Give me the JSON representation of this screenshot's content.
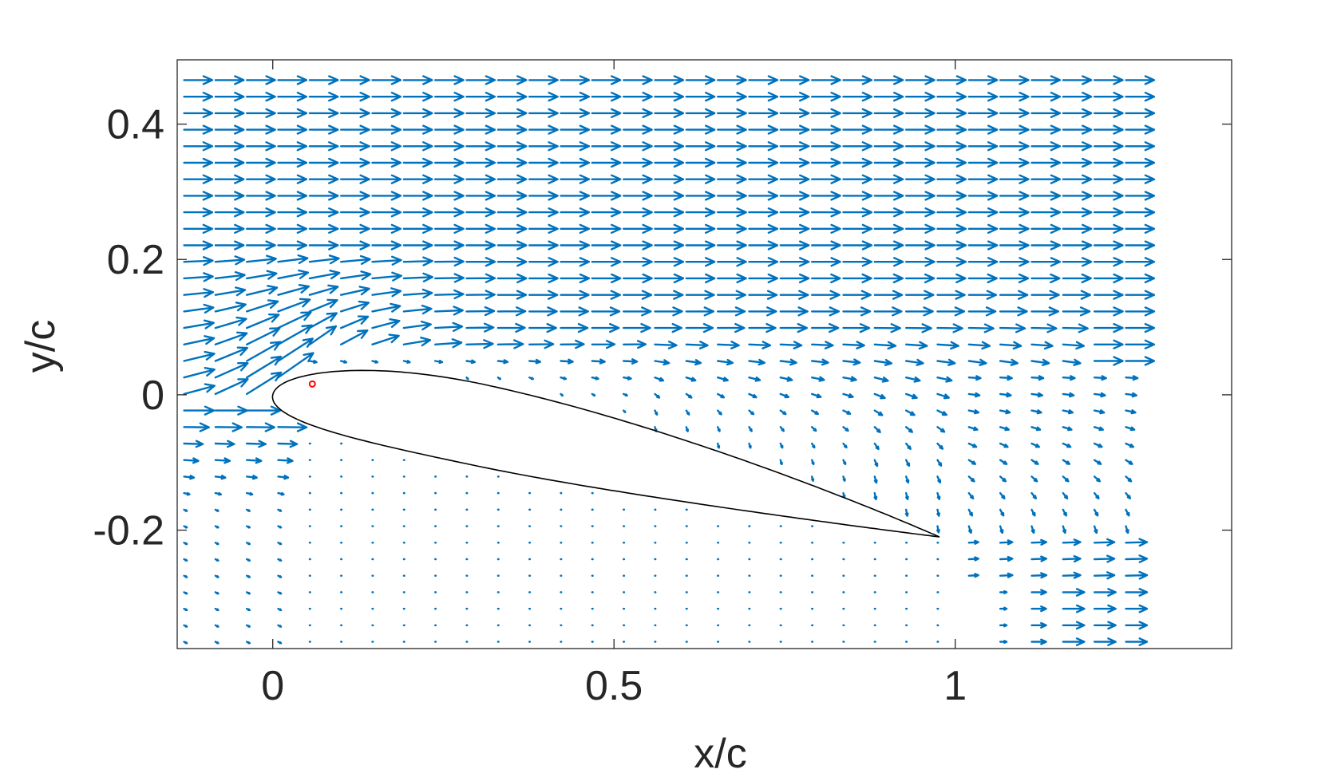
{
  "chart_data": {
    "type": "quiver",
    "title": "",
    "xlabel": "x/c",
    "ylabel": "y/c",
    "xlim": [
      -0.14,
      1.405
    ],
    "ylim": [
      -0.375,
      0.495
    ],
    "xticks": [
      0,
      0.5,
      1
    ],
    "xtick_labels": [
      "0",
      "0.5",
      "1"
    ],
    "yticks": [
      -0.2,
      0,
      0.2,
      0.4
    ],
    "ytick_labels": [
      "-0.2",
      "0",
      "0.2",
      "0.4"
    ],
    "grid": false,
    "legend": "none",
    "colors": {
      "vectors": "#0072bd",
      "airfoil": "#000000",
      "marker": "#ff0000",
      "axes": "#262626"
    },
    "vector_field": {
      "x_range": [
        -0.13,
        1.25
      ],
      "x_count": 31,
      "y_range": [
        -0.365,
        0.465
      ],
      "y_count": 35,
      "freestream_u": 1.0,
      "freestream_v": 0.0
    },
    "airfoil": {
      "leading_edge": [
        0.0,
        0.0
      ],
      "trailing_edge": [
        0.977,
        -0.21
      ],
      "chord": 1.0,
      "angle_of_attack_deg": 12.1,
      "thickness_ratio": 0.12,
      "camber": 0.02
    },
    "marker_point": {
      "x": 0.058,
      "y": 0.016
    }
  }
}
